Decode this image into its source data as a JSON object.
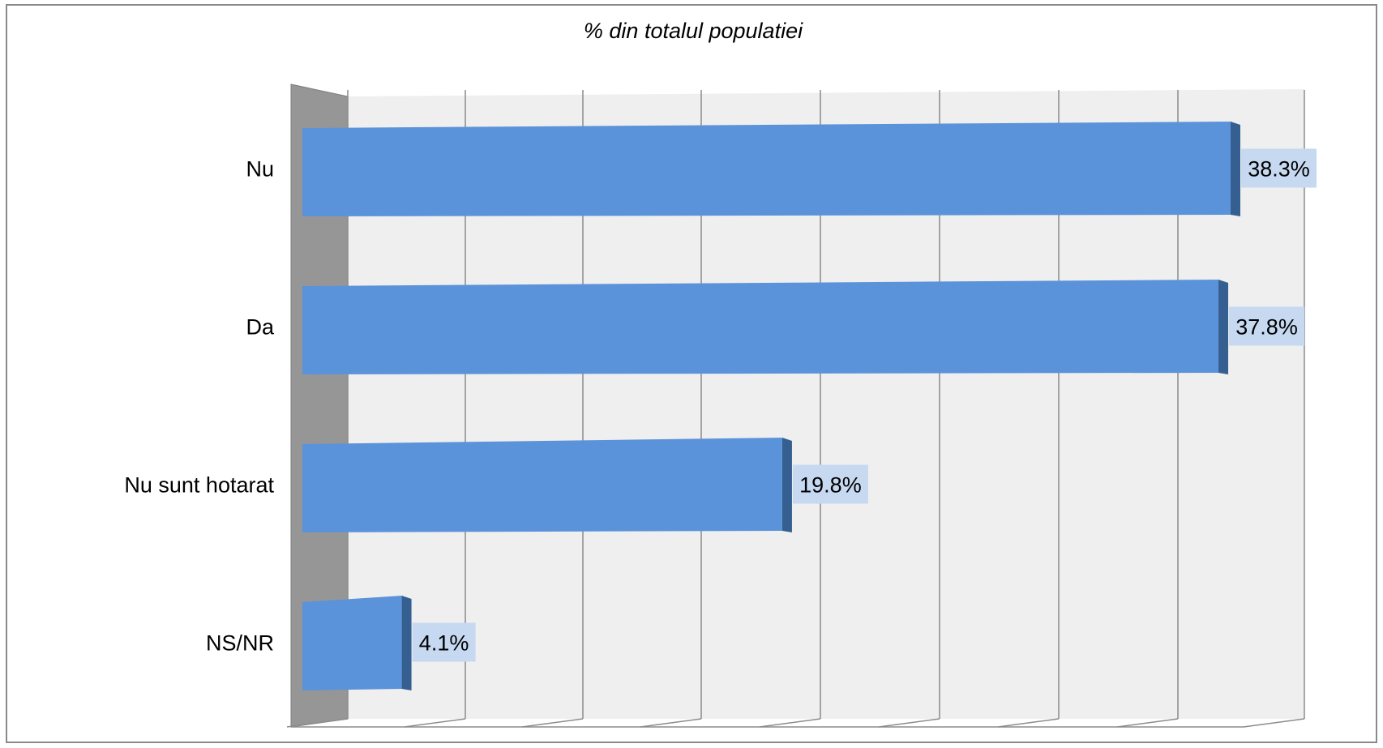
{
  "chart_data": {
    "type": "bar",
    "orientation": "horizontal",
    "title": "% din totalul populatiei",
    "categories": [
      "Nu",
      "Da",
      "Nu sunt hotarat",
      "NS/NR"
    ],
    "values": [
      38.3,
      37.8,
      19.8,
      4.1
    ],
    "value_labels": [
      "38.3%",
      "37.8%",
      "19.8%",
      "4.1%"
    ],
    "xlabel": "",
    "ylabel": "",
    "xlim": [
      0,
      40
    ],
    "grid": true,
    "legend": "none",
    "style": "3d"
  },
  "colors": {
    "bar_front": "#5b93da",
    "bar_side": "#365f91",
    "label_bg": "#c6d9f1",
    "wall": "#efefef",
    "left_wall": "#969696",
    "grid": "#8c8c8c"
  }
}
